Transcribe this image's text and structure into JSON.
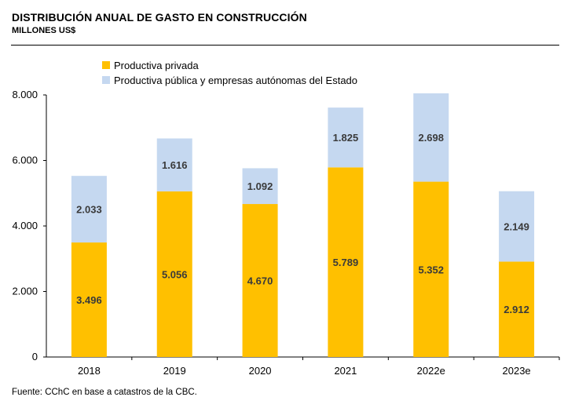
{
  "header": {
    "title": "DISTRIBUCIÓN ANUAL DE GASTO EN CONSTRUCCIÓN",
    "subtitle": "MILLONES US$"
  },
  "footer": {
    "source": "Fuente: CChC en base a catastros de la CBC."
  },
  "chart_data": {
    "type": "bar",
    "stacked": true,
    "title": "DISTRIBUCIÓN ANUAL DE GASTO EN CONSTRUCCIÓN",
    "subtitle": "MILLONES US$",
    "xlabel": "",
    "ylabel": "",
    "categories": [
      "2018",
      "2019",
      "2020",
      "2021",
      "2022e",
      "2023e"
    ],
    "series": [
      {
        "name": "Productiva privada",
        "color": "#FFC000",
        "values": [
          3496,
          5056,
          4670,
          5789,
          5352,
          2912
        ],
        "labels": [
          "3.496",
          "5.056",
          "4.670",
          "5.789",
          "5.352",
          "2.912"
        ]
      },
      {
        "name": "Productiva pública y empresas autónomas del Estado",
        "color": "#C5D8F0",
        "values": [
          2033,
          1616,
          1092,
          1825,
          2698,
          2149
        ],
        "labels": [
          "2.033",
          "1.616",
          "1.092",
          "1.825",
          "2.698",
          "2.149"
        ]
      }
    ],
    "ylim": [
      0,
      8000
    ],
    "yticks": [
      0,
      2000,
      4000,
      6000,
      8000
    ],
    "ytick_labels": [
      "0",
      "2.000",
      "4.000",
      "6.000",
      "8.000"
    ],
    "grid": false,
    "legend_position": "top"
  }
}
